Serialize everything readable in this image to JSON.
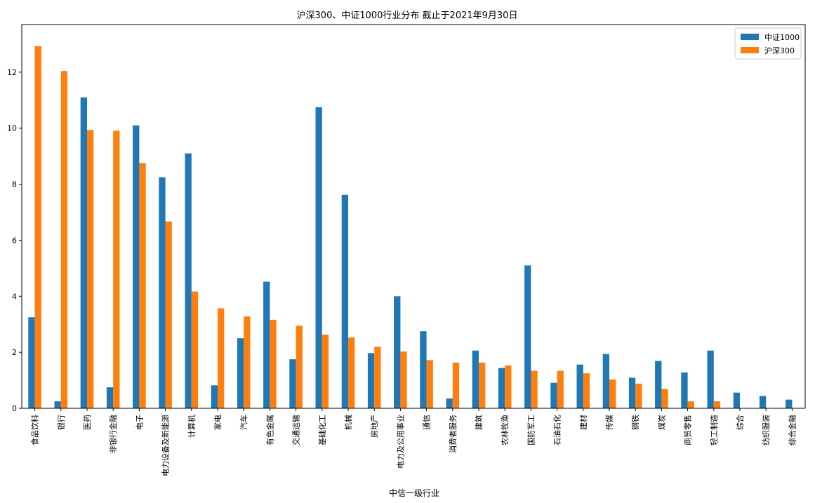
{
  "colors": {
    "series0": "#1f77b4",
    "series1": "#ff7f0e",
    "axis": "#000000",
    "legend_border": "#cccccc"
  },
  "chart_data": {
    "type": "bar",
    "title": "沪深300、中证1000行业分布 截止于2021年9月30日",
    "xlabel": "中信一级行业",
    "ylabel": "",
    "ylim": [
      0,
      13.7
    ],
    "yticks": [
      0,
      2,
      4,
      6,
      8,
      10,
      12
    ],
    "grid": false,
    "legend": "top-right",
    "categories": [
      "食品饮料",
      "银行",
      "医药",
      "非银行金融",
      "电子",
      "电力设备及新能源",
      "计算机",
      "家电",
      "汽车",
      "有色金属",
      "交通运输",
      "基础化工",
      "机械",
      "房地产",
      "电力及公用事业",
      "通信",
      "消费者服务",
      "建筑",
      "农林牧渔",
      "国防军工",
      "石油石化",
      "建材",
      "传媒",
      "钢铁",
      "煤炭",
      "商贸零售",
      "轻工制造",
      "综合",
      "纺织服装",
      "综合金融"
    ],
    "series": [
      {
        "name": "中证1000",
        "values": [
          3.25,
          0.25,
          11.1,
          0.75,
          10.1,
          8.25,
          9.1,
          0.82,
          2.5,
          4.52,
          1.75,
          10.75,
          7.62,
          1.97,
          4.0,
          2.75,
          0.35,
          2.06,
          1.44,
          5.1,
          0.91,
          1.56,
          1.94,
          1.09,
          1.69,
          1.28,
          2.06,
          0.56,
          0.44,
          0.31
        ]
      },
      {
        "name": "沪深300",
        "values": [
          12.93,
          12.04,
          9.94,
          9.91,
          8.76,
          6.67,
          4.17,
          3.57,
          3.28,
          3.16,
          2.95,
          2.63,
          2.53,
          2.2,
          2.03,
          1.72,
          1.63,
          1.63,
          1.53,
          1.34,
          1.34,
          1.25,
          1.03,
          0.88,
          0.69,
          0.25,
          0.25,
          0,
          0,
          0
        ]
      }
    ]
  }
}
